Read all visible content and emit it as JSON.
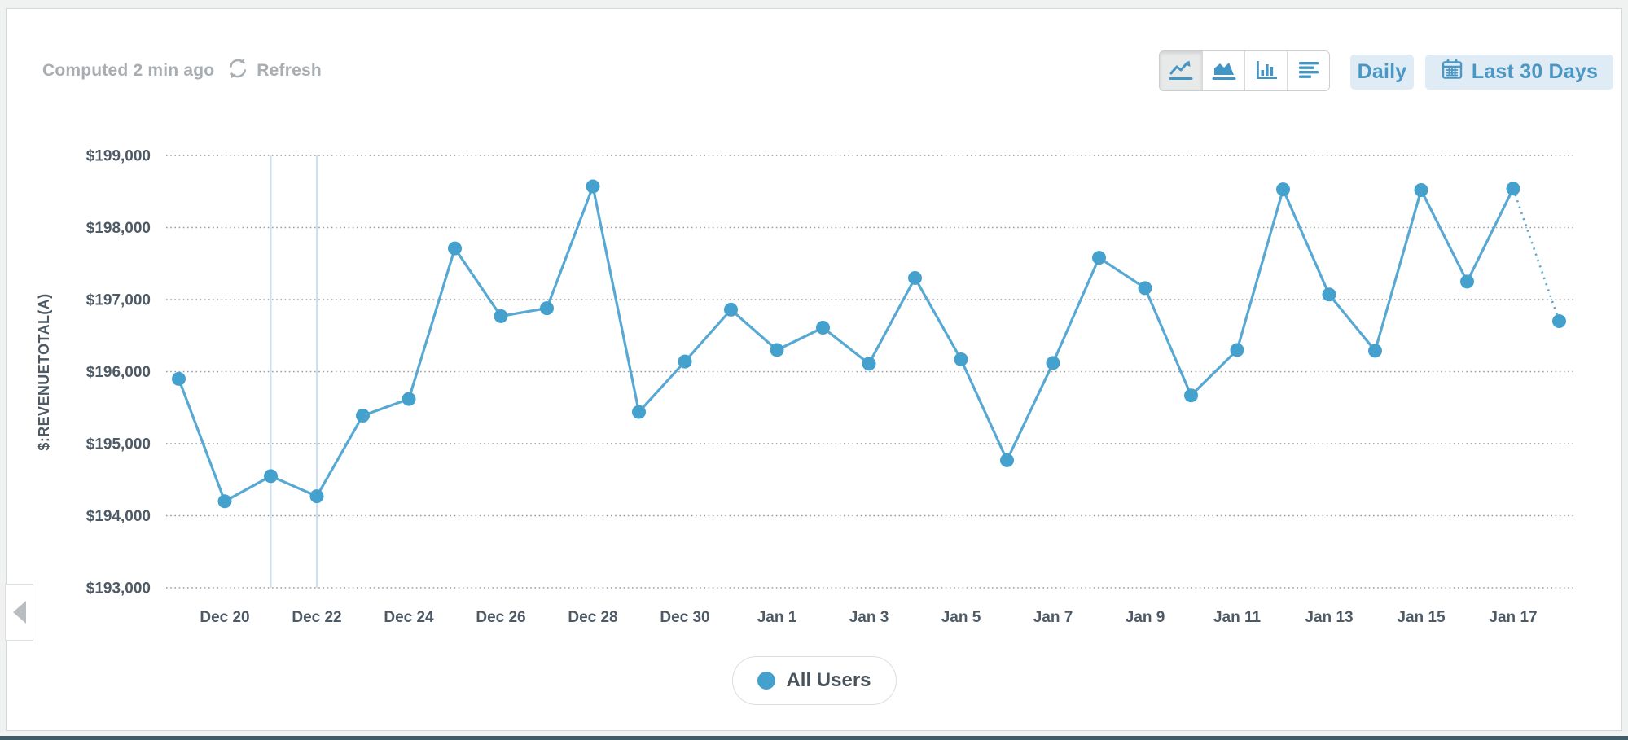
{
  "header": {
    "computed_label": "Computed 2 min ago",
    "refresh_label": "Refresh"
  },
  "toolbar": {
    "chart_types": [
      {
        "name": "line",
        "selected": true
      },
      {
        "name": "area",
        "selected": false
      },
      {
        "name": "bar",
        "selected": false
      },
      {
        "name": "table",
        "selected": false
      }
    ],
    "granularity_label": "Daily",
    "date_range_label": "Last 30 Days"
  },
  "legend": {
    "label": "All Users",
    "color": "#44a0cd"
  },
  "colors": {
    "line": "#57a8d3",
    "point": "#44a0cd",
    "icon_blue": "#4396c3",
    "button_bg": "#dfecf5",
    "button_text": "#4a97c3",
    "grid": "#9b9b9b",
    "axis_text": "#4d5965",
    "muted_text": "#a7adb1",
    "vertical_marker": "#cbe0f2",
    "bottom_bar": "#415d68"
  },
  "chart_data": {
    "type": "line",
    "title": "",
    "xlabel": "",
    "ylabel": "$:REVENUETOTAL(A)",
    "ylim": [
      193000,
      199000
    ],
    "y_tick_step": 1000,
    "y_tick_labels": [
      "$199,000",
      "$198,000",
      "$197,000",
      "$196,000",
      "$195,000",
      "$194,000",
      "$193,000"
    ],
    "grid": "horizontal-dotted",
    "legend_position": "bottom-center",
    "x": [
      "Dec 19",
      "Dec 20",
      "Dec 21",
      "Dec 22",
      "Dec 23",
      "Dec 24",
      "Dec 25",
      "Dec 26",
      "Dec 27",
      "Dec 28",
      "Dec 29",
      "Dec 30",
      "Dec 31",
      "Jan 1",
      "Jan 2",
      "Jan 3",
      "Jan 4",
      "Jan 5",
      "Jan 6",
      "Jan 7",
      "Jan 8",
      "Jan 9",
      "Jan 10",
      "Jan 11",
      "Jan 12",
      "Jan 13",
      "Jan 14",
      "Jan 15",
      "Jan 16",
      "Jan 17",
      "Jan 18"
    ],
    "x_tick_labels": [
      "Dec 20",
      "Dec 22",
      "Dec 24",
      "Dec 26",
      "Dec 28",
      "Dec 30",
      "Jan 1",
      "Jan 3",
      "Jan 5",
      "Jan 7",
      "Jan 9",
      "Jan 11",
      "Jan 13",
      "Jan 15",
      "Jan 17"
    ],
    "vertical_markers": [
      "Dec 21",
      "Dec 22"
    ],
    "series": [
      {
        "name": "All Users",
        "color": "#44a0cd",
        "values": [
          195900,
          194200,
          194550,
          194270,
          195390,
          195620,
          197710,
          196770,
          196880,
          198570,
          195440,
          196140,
          196860,
          196300,
          196610,
          196110,
          197300,
          196170,
          194770,
          196120,
          197580,
          197160,
          195670,
          196300,
          198530,
          197070,
          196290,
          198520,
          197250,
          198540,
          196700
        ]
      }
    ],
    "last_segment_dotted": true
  }
}
